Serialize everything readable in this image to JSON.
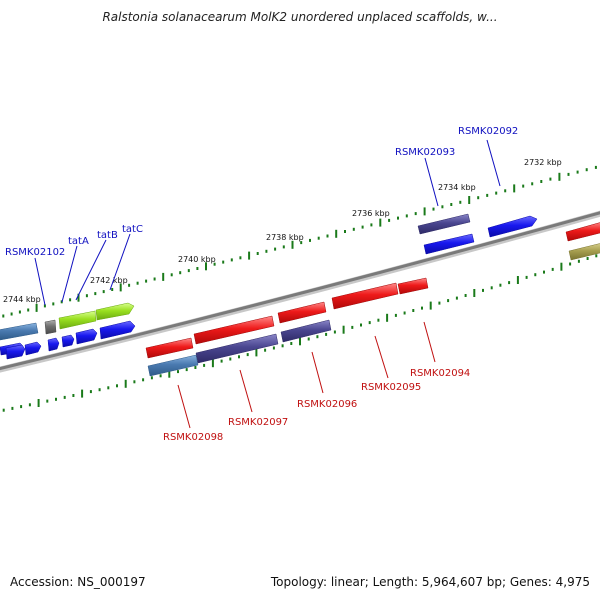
{
  "title": "Ralstonia solanacearum MolK2 unordered unplaced scaffolds, w...",
  "footer": {
    "accession": "Accession: NS_000197",
    "summary": "Topology: linear; Length: 5,964,607 bp; Genes: 4,975"
  },
  "scale_labels": [
    "2732 kbp",
    "2734 kbp",
    "2736 kbp",
    "2738 kbp",
    "2740 kbp",
    "2742 kbp",
    "2744 kbp"
  ],
  "gene_labels_top": [
    "RSMK02092",
    "RSMK02093",
    "RSMK02102",
    "tatA",
    "tatB",
    "tatC"
  ],
  "gene_labels_bottom": [
    "RSMK02094",
    "RSMK02095",
    "RSMK02096",
    "RSMK02097",
    "RSMK02098"
  ],
  "colors": {
    "backbone": "#8a8a8a",
    "tick": "#1a7a1a",
    "red_gene": "#e8101a",
    "blue_gene": "#1010e0",
    "purple_gene": "#4a4690",
    "steel_gene": "#4a7ab0",
    "green_gene": "#9ae020",
    "olive_gene": "#a8a050",
    "gray_gene": "#707070"
  }
}
